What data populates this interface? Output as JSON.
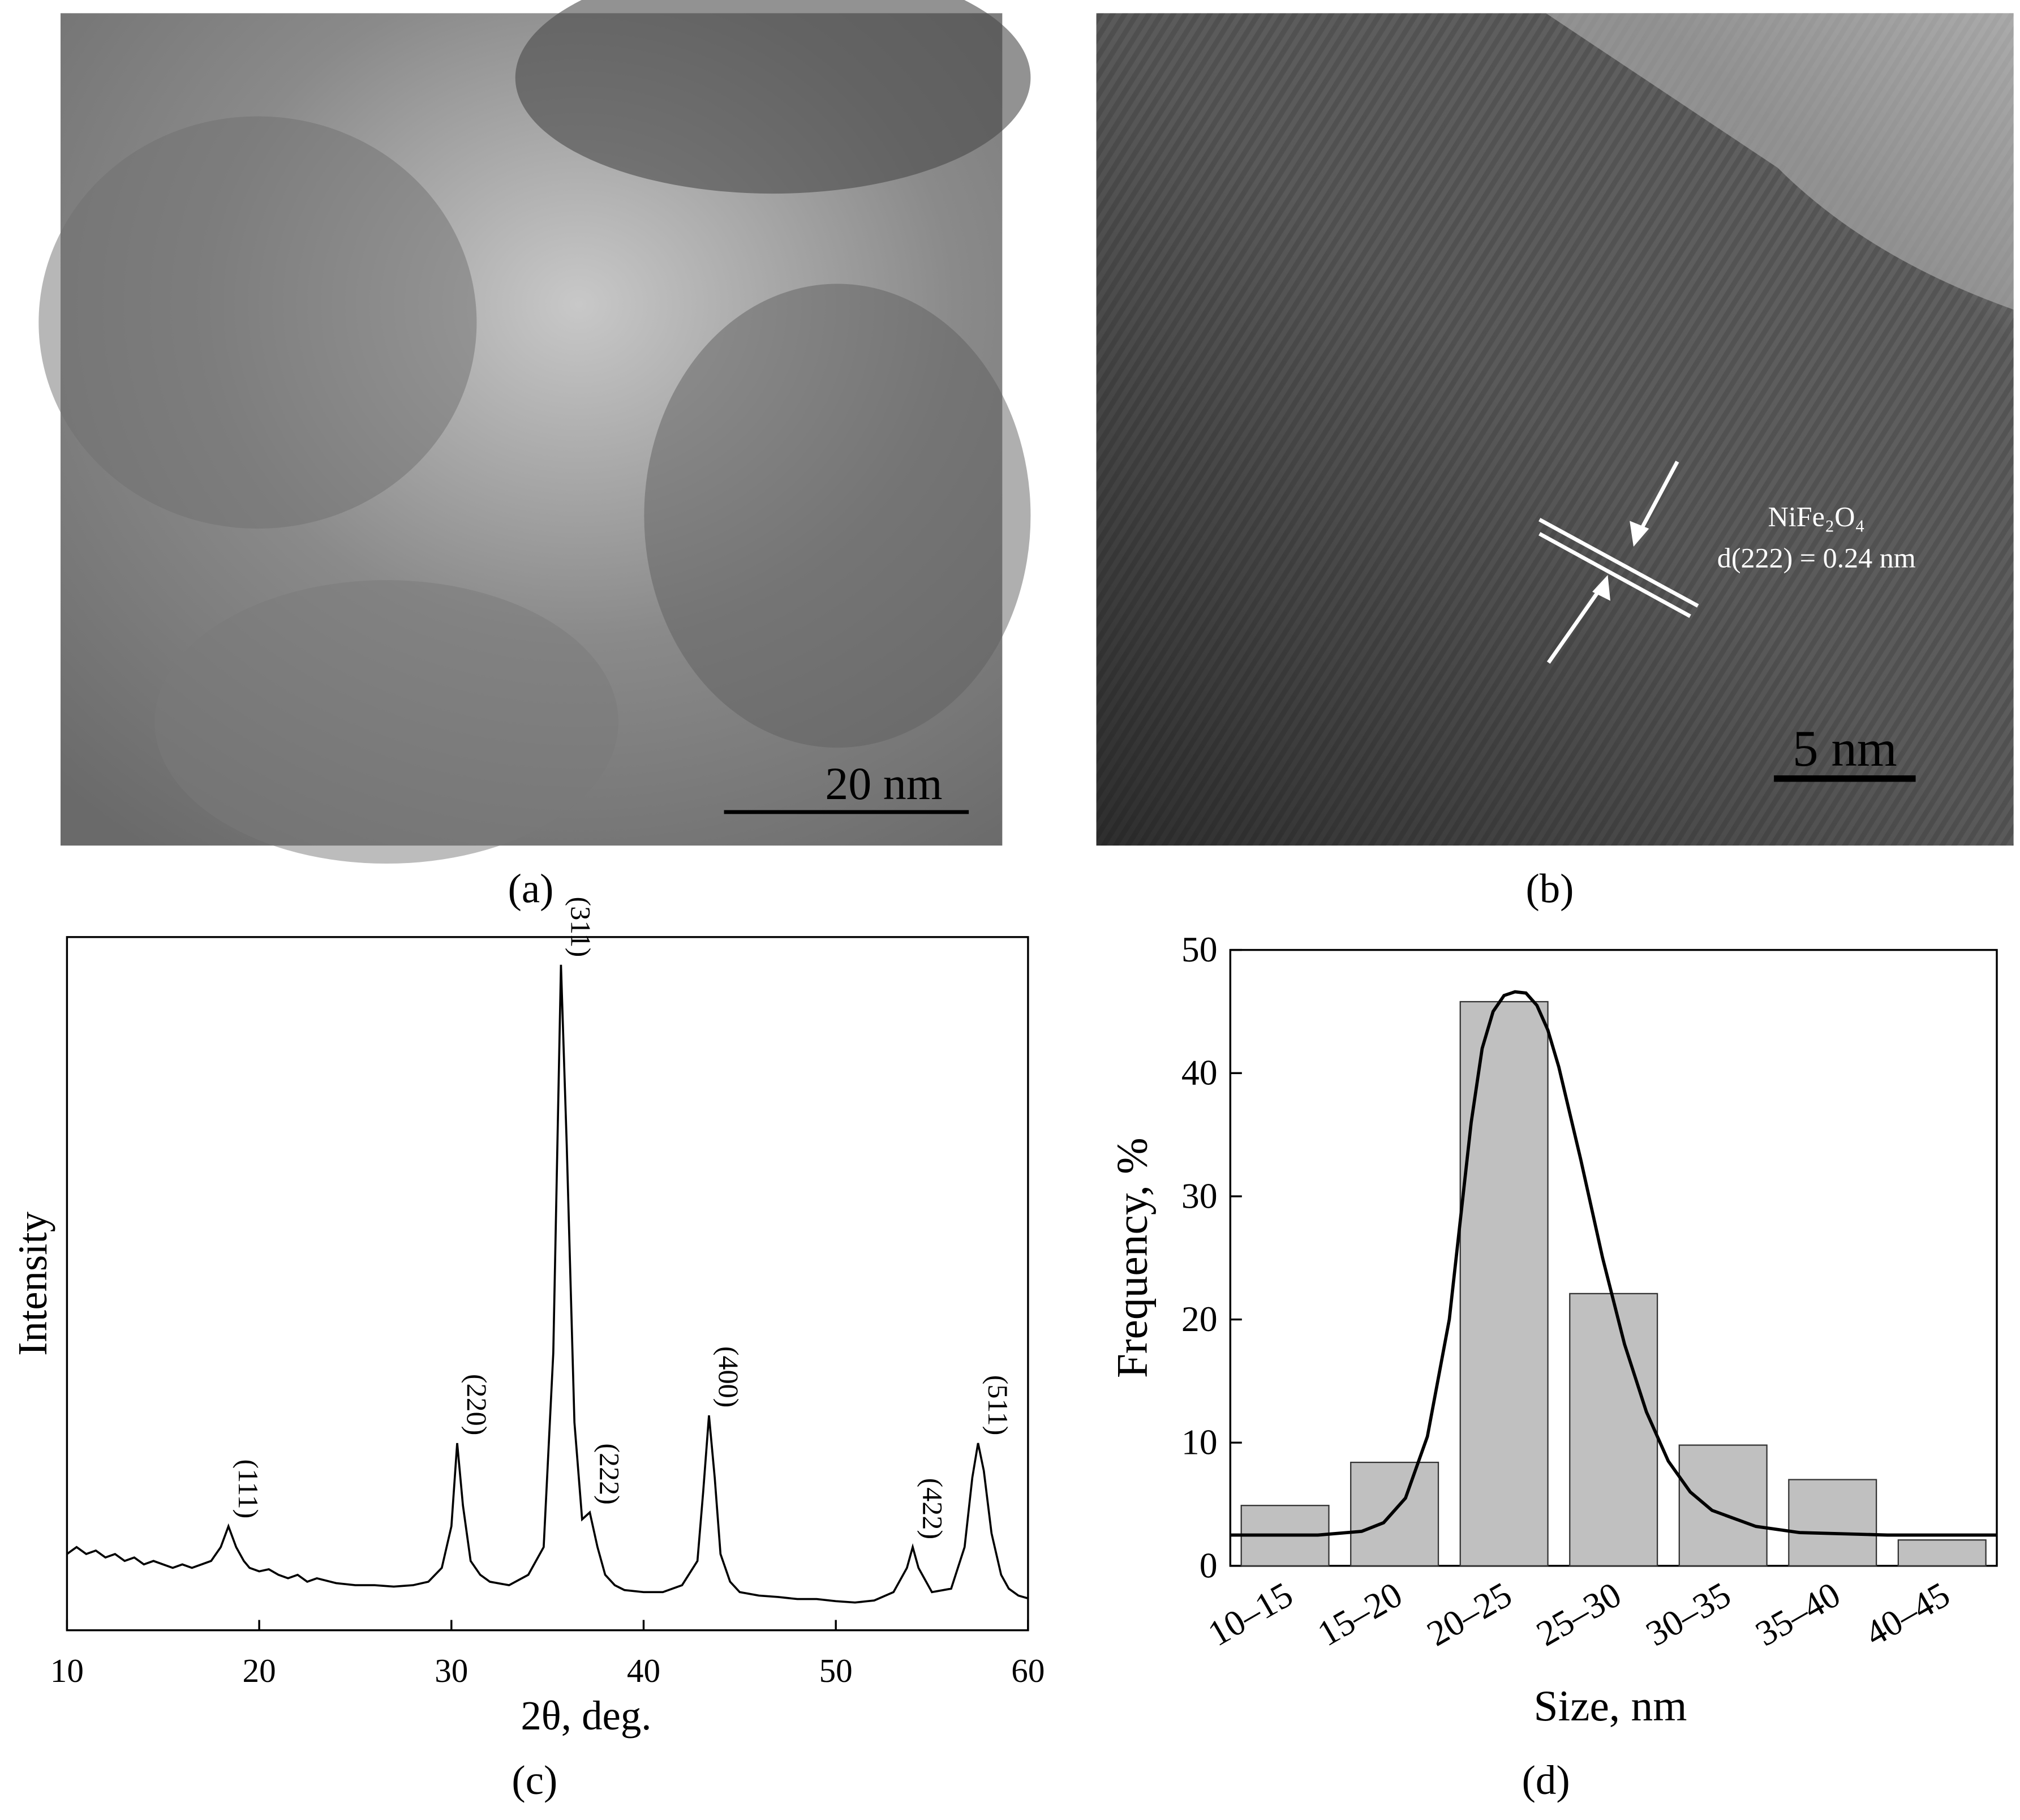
{
  "panels": [
    {
      "label": "(a)",
      "scale_bar": "20 nm"
    },
    {
      "label": "(b)",
      "scale_bar": "5 nm",
      "annotation": [
        "NiFe₂O₄",
        "d(222) = 0.24 nm"
      ]
    }
  ],
  "chart_data": [
    {
      "type": "line",
      "label": "(c)",
      "x_label": "2θ, deg.",
      "y_label": "Intensity",
      "color": "#000000",
      "xlim": [
        10,
        60
      ],
      "xticks": [
        10,
        20,
        30,
        40,
        50,
        60
      ],
      "ylim": [
        0,
        100
      ],
      "x": [
        10,
        10.5,
        11,
        11.5,
        12,
        12.5,
        13,
        13.5,
        14,
        14.5,
        15,
        15.5,
        16,
        16.5,
        17,
        17.5,
        18,
        18.4,
        18.8,
        19.2,
        19.5,
        20,
        20.5,
        21,
        21.5,
        22,
        22.5,
        23,
        24,
        25,
        26,
        27,
        28,
        28.8,
        29.5,
        30,
        30.3,
        30.6,
        31,
        31.5,
        32,
        33,
        34,
        34.8,
        35.3,
        35.7,
        36,
        36.4,
        36.8,
        37.2,
        37.6,
        38,
        38.5,
        39,
        40,
        41,
        42,
        42.8,
        43.1,
        43.4,
        43.7,
        44,
        44.5,
        45,
        46,
        47,
        48,
        49,
        50,
        51,
        52,
        53,
        53.7,
        54,
        54.3,
        55,
        56,
        56.7,
        57.1,
        57.4,
        57.7,
        58.1,
        58.6,
        59,
        59.5,
        60
      ],
      "values": [
        11,
        12,
        11,
        11.5,
        10.5,
        11,
        10,
        10.5,
        9.5,
        10,
        9.5,
        9,
        9.5,
        9,
        9.5,
        10,
        12,
        15,
        12,
        10,
        9,
        8.5,
        8.8,
        8,
        7.5,
        8,
        7,
        7.5,
        6.8,
        6.5,
        6.5,
        6.3,
        6.5,
        7,
        9,
        15,
        27,
        18,
        10,
        8,
        7,
        6.5,
        8,
        12,
        40,
        96,
        70,
        30,
        16,
        17,
        12,
        8,
        6.5,
        5.8,
        5.5,
        5.5,
        6.5,
        10,
        20,
        31,
        22,
        11,
        7,
        5.5,
        5,
        4.8,
        4.5,
        4.5,
        4.2,
        4,
        4.3,
        5.5,
        9,
        12,
        9,
        5.5,
        6,
        12,
        22,
        27,
        23,
        14,
        8,
        6,
        5,
        4.6
      ],
      "peak_labels": [
        {
          "text": "(111)",
          "x": 18.4
        },
        {
          "text": "(220)",
          "x": 30.3
        },
        {
          "text": "(311)",
          "x": 35.7
        },
        {
          "text": "(222)",
          "x": 37.2
        },
        {
          "text": "(400)",
          "x": 43.4
        },
        {
          "text": "(422)",
          "x": 54
        },
        {
          "text": "(511)",
          "x": 57.4
        }
      ]
    },
    {
      "type": "bar",
      "label": "(d)",
      "x_label": "Size, nm",
      "y_label": "Frequency, %",
      "color": "#c0c0c0",
      "categories": [
        "10–15",
        "15–20",
        "20–25",
        "25–30",
        "30–35",
        "35–40",
        "40–45"
      ],
      "values": [
        4.9,
        8.4,
        45.8,
        22.1,
        9.8,
        7.0,
        2.1
      ],
      "ylim": [
        0,
        50
      ],
      "yticks": [
        0,
        10,
        20,
        30,
        40,
        50
      ],
      "xlim": [
        10,
        45
      ],
      "fit": {
        "color": "#000000",
        "x": [
          10,
          14,
          16,
          17,
          18,
          19,
          20,
          20.5,
          21,
          21.5,
          22,
          22.5,
          23,
          23.5,
          24,
          24.5,
          25,
          26,
          27,
          28,
          29,
          30,
          31,
          32,
          34,
          36,
          40,
          45
        ],
        "values": [
          2.5,
          2.5,
          2.8,
          3.5,
          5.5,
          10.5,
          20,
          28,
          36,
          42,
          45,
          46.3,
          46.6,
          46.5,
          45.5,
          43.5,
          40.5,
          33,
          25,
          18,
          12.5,
          8.5,
          6,
          4.5,
          3.2,
          2.7,
          2.5,
          2.5
        ]
      }
    }
  ]
}
